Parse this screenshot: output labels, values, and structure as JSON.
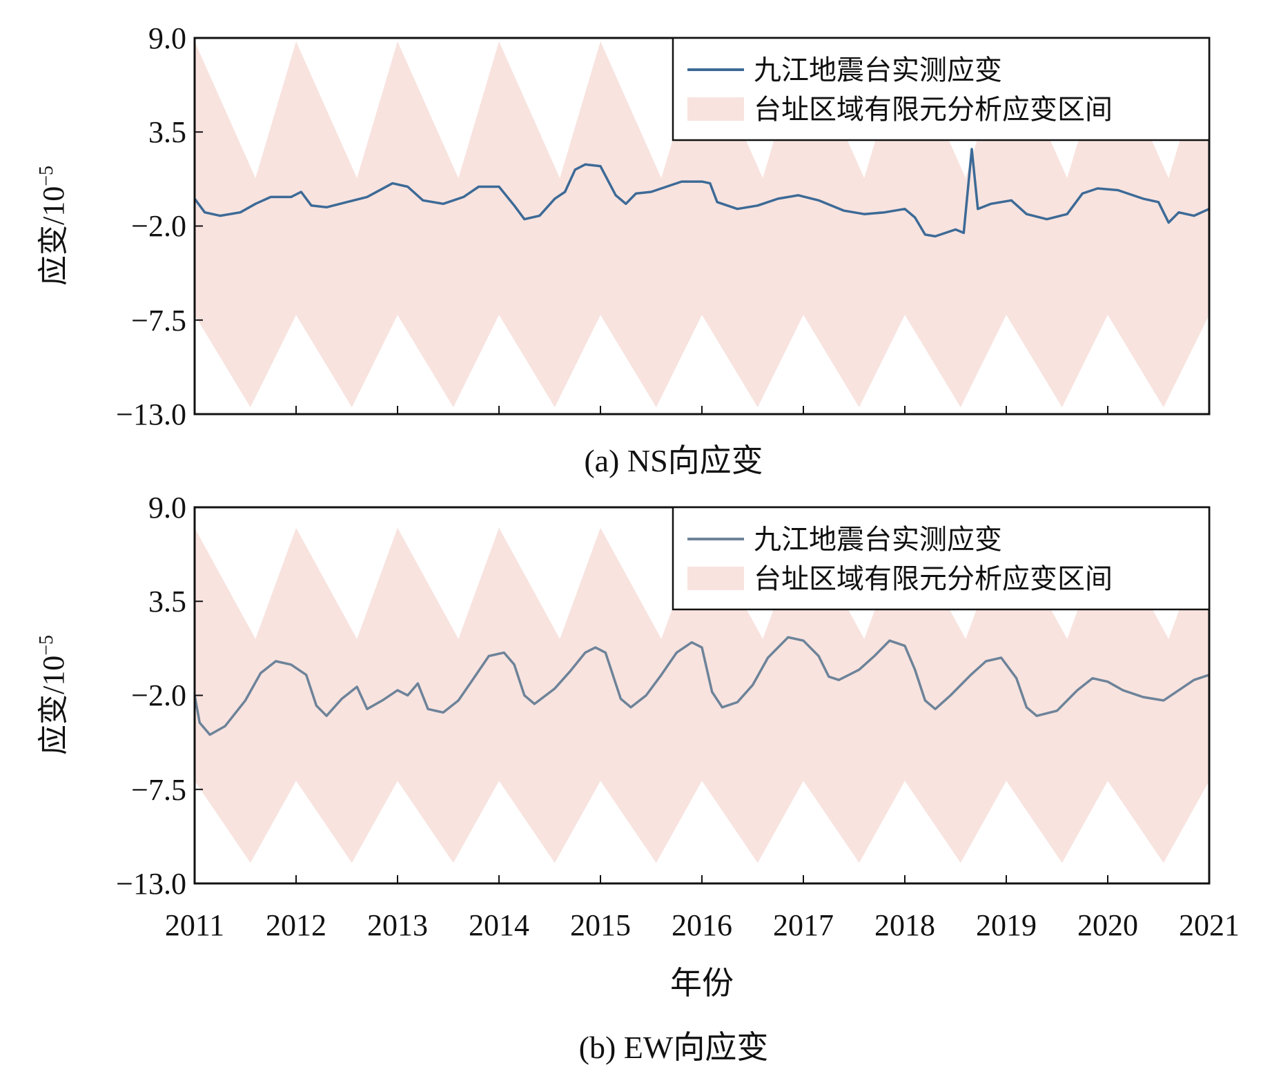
{
  "figure": {
    "x_axis_title": "年份",
    "x_ticks": [
      "2011",
      "2012",
      "2013",
      "2014",
      "2015",
      "2016",
      "2017",
      "2018",
      "2019",
      "2020",
      "2021"
    ]
  },
  "chart_data": [
    {
      "type": "area",
      "caption": "(a) NS向应变",
      "ylabel": "应变/10",
      "ylabel_exponent": "−5",
      "y_ticks": [
        "9.0",
        "3.5",
        "−2.0",
        "−7.5",
        "−13.0"
      ],
      "ylim": [
        -13.0,
        9.0
      ],
      "xlim": [
        2011,
        2021
      ],
      "grid": false,
      "legend_position": "top-right",
      "legend": [
        "九江地震台实测应变",
        "台址区域有限元分析应变区间"
      ],
      "colors": {
        "line": "#3d6a96",
        "band": "#f8e3df"
      },
      "band": {
        "upper_peaks": [
          {
            "x": 2011.0,
            "y": 8.8
          },
          {
            "x": 2012.0,
            "y": 8.8
          },
          {
            "x": 2013.0,
            "y": 8.8
          },
          {
            "x": 2014.0,
            "y": 8.8
          },
          {
            "x": 2015.0,
            "y": 8.8
          },
          {
            "x": 2016.0,
            "y": 8.8
          },
          {
            "x": 2017.0,
            "y": 8.8
          },
          {
            "x": 2018.0,
            "y": 8.8
          },
          {
            "x": 2019.0,
            "y": 8.8
          },
          {
            "x": 2020.0,
            "y": 8.8
          },
          {
            "x": 2021.0,
            "y": 8.8
          }
        ],
        "upper_troughs": [
          {
            "x": 2011.6,
            "y": 0.8
          },
          {
            "x": 2012.6,
            "y": 0.8
          },
          {
            "x": 2013.6,
            "y": 0.8
          },
          {
            "x": 2014.6,
            "y": 0.8
          },
          {
            "x": 2015.6,
            "y": 0.8
          },
          {
            "x": 2016.6,
            "y": 0.8
          },
          {
            "x": 2017.6,
            "y": 0.8
          },
          {
            "x": 2018.6,
            "y": 0.8
          },
          {
            "x": 2019.6,
            "y": 0.8
          },
          {
            "x": 2020.6,
            "y": 0.8
          }
        ],
        "lower_peaks": [
          {
            "x": 2011.0,
            "y": -7.2
          },
          {
            "x": 2012.0,
            "y": -7.2
          },
          {
            "x": 2013.0,
            "y": -7.2
          },
          {
            "x": 2014.0,
            "y": -7.2
          },
          {
            "x": 2015.0,
            "y": -7.2
          },
          {
            "x": 2016.0,
            "y": -7.2
          },
          {
            "x": 2017.0,
            "y": -7.2
          },
          {
            "x": 2018.0,
            "y": -7.2
          },
          {
            "x": 2019.0,
            "y": -7.2
          },
          {
            "x": 2020.0,
            "y": -7.2
          },
          {
            "x": 2021.0,
            "y": -7.2
          }
        ],
        "lower_troughs": [
          {
            "x": 2011.55,
            "y": -12.6
          },
          {
            "x": 2012.55,
            "y": -12.6
          },
          {
            "x": 2013.55,
            "y": -12.6
          },
          {
            "x": 2014.55,
            "y": -12.6
          },
          {
            "x": 2015.55,
            "y": -12.6
          },
          {
            "x": 2016.55,
            "y": -12.6
          },
          {
            "x": 2017.55,
            "y": -12.6
          },
          {
            "x": 2018.55,
            "y": -12.6
          },
          {
            "x": 2019.55,
            "y": -12.6
          },
          {
            "x": 2020.55,
            "y": -12.6
          }
        ]
      },
      "series": [
        {
          "name": "九江地震台实测应变",
          "points": [
            [
              2011.0,
              -0.4
            ],
            [
              2011.1,
              -1.2
            ],
            [
              2011.25,
              -1.4
            ],
            [
              2011.45,
              -1.2
            ],
            [
              2011.6,
              -0.7
            ],
            [
              2011.75,
              -0.3
            ],
            [
              2011.95,
              -0.3
            ],
            [
              2012.05,
              0.0
            ],
            [
              2012.15,
              -0.8
            ],
            [
              2012.3,
              -0.9
            ],
            [
              2012.5,
              -0.6
            ],
            [
              2012.7,
              -0.3
            ],
            [
              2012.95,
              0.5
            ],
            [
              2013.1,
              0.3
            ],
            [
              2013.25,
              -0.5
            ],
            [
              2013.45,
              -0.7
            ],
            [
              2013.65,
              -0.3
            ],
            [
              2013.8,
              0.3
            ],
            [
              2014.0,
              0.3
            ],
            [
              2014.15,
              -0.8
            ],
            [
              2014.25,
              -1.6
            ],
            [
              2014.4,
              -1.4
            ],
            [
              2014.55,
              -0.4
            ],
            [
              2014.65,
              0.0
            ],
            [
              2014.75,
              1.3
            ],
            [
              2014.85,
              1.6
            ],
            [
              2015.0,
              1.5
            ],
            [
              2015.15,
              -0.2
            ],
            [
              2015.25,
              -0.7
            ],
            [
              2015.35,
              -0.1
            ],
            [
              2015.5,
              0.0
            ],
            [
              2015.65,
              0.3
            ],
            [
              2015.8,
              0.6
            ],
            [
              2016.0,
              0.6
            ],
            [
              2016.08,
              0.5
            ],
            [
              2016.15,
              -0.6
            ],
            [
              2016.35,
              -1.0
            ],
            [
              2016.55,
              -0.8
            ],
            [
              2016.75,
              -0.4
            ],
            [
              2016.95,
              -0.2
            ],
            [
              2017.15,
              -0.5
            ],
            [
              2017.4,
              -1.1
            ],
            [
              2017.6,
              -1.3
            ],
            [
              2017.8,
              -1.2
            ],
            [
              2018.0,
              -1.0
            ],
            [
              2018.1,
              -1.5
            ],
            [
              2018.2,
              -2.5
            ],
            [
              2018.3,
              -2.6
            ],
            [
              2018.5,
              -2.2
            ],
            [
              2018.58,
              -2.4
            ],
            [
              2018.66,
              2.5
            ],
            [
              2018.72,
              -1.0
            ],
            [
              2018.85,
              -0.7
            ],
            [
              2019.05,
              -0.5
            ],
            [
              2019.2,
              -1.3
            ],
            [
              2019.4,
              -1.6
            ],
            [
              2019.6,
              -1.3
            ],
            [
              2019.75,
              -0.1
            ],
            [
              2019.9,
              0.2
            ],
            [
              2020.1,
              0.1
            ],
            [
              2020.35,
              -0.4
            ],
            [
              2020.5,
              -0.6
            ],
            [
              2020.6,
              -1.8
            ],
            [
              2020.7,
              -1.2
            ],
            [
              2020.85,
              -1.4
            ],
            [
              2021.0,
              -1.0
            ]
          ]
        }
      ]
    },
    {
      "type": "area",
      "caption": "(b) EW向应变",
      "ylabel": "应变/10",
      "ylabel_exponent": "−5",
      "y_ticks": [
        "9.0",
        "3.5",
        "−2.0",
        "−7.5",
        "−13.0"
      ],
      "ylim": [
        -13.0,
        9.0
      ],
      "xlim": [
        2011,
        2021
      ],
      "grid": false,
      "legend_position": "top-right",
      "legend": [
        "九江地震台实测应变",
        "台址区域有限元分析应变区间"
      ],
      "colors": {
        "line": "#6d8399",
        "band": "#f8e3df"
      },
      "band": {
        "upper_peaks": [
          {
            "x": 2011.0,
            "y": 7.8
          },
          {
            "x": 2012.0,
            "y": 7.8
          },
          {
            "x": 2013.0,
            "y": 7.8
          },
          {
            "x": 2014.0,
            "y": 7.8
          },
          {
            "x": 2015.0,
            "y": 7.8
          },
          {
            "x": 2016.0,
            "y": 7.8
          },
          {
            "x": 2017.0,
            "y": 7.8
          },
          {
            "x": 2018.0,
            "y": 7.8
          },
          {
            "x": 2019.0,
            "y": 7.8
          },
          {
            "x": 2020.0,
            "y": 7.8
          },
          {
            "x": 2021.0,
            "y": 7.8
          }
        ],
        "upper_troughs": [
          {
            "x": 2011.6,
            "y": 1.3
          },
          {
            "x": 2012.6,
            "y": 1.3
          },
          {
            "x": 2013.6,
            "y": 1.3
          },
          {
            "x": 2014.6,
            "y": 1.3
          },
          {
            "x": 2015.6,
            "y": 1.3
          },
          {
            "x": 2016.6,
            "y": 1.3
          },
          {
            "x": 2017.6,
            "y": 1.3
          },
          {
            "x": 2018.6,
            "y": 1.3
          },
          {
            "x": 2019.6,
            "y": 1.3
          },
          {
            "x": 2020.6,
            "y": 1.3
          }
        ],
        "lower_peaks": [
          {
            "x": 2011.0,
            "y": -7.0
          },
          {
            "x": 2012.0,
            "y": -7.0
          },
          {
            "x": 2013.0,
            "y": -7.0
          },
          {
            "x": 2014.0,
            "y": -7.0
          },
          {
            "x": 2015.0,
            "y": -7.0
          },
          {
            "x": 2016.0,
            "y": -7.0
          },
          {
            "x": 2017.0,
            "y": -7.0
          },
          {
            "x": 2018.0,
            "y": -7.0
          },
          {
            "x": 2019.0,
            "y": -7.0
          },
          {
            "x": 2020.0,
            "y": -7.0
          },
          {
            "x": 2021.0,
            "y": -7.0
          }
        ],
        "lower_troughs": [
          {
            "x": 2011.55,
            "y": -11.8
          },
          {
            "x": 2012.55,
            "y": -11.8
          },
          {
            "x": 2013.55,
            "y": -11.8
          },
          {
            "x": 2014.55,
            "y": -11.8
          },
          {
            "x": 2015.55,
            "y": -11.8
          },
          {
            "x": 2016.55,
            "y": -11.8
          },
          {
            "x": 2017.55,
            "y": -11.8
          },
          {
            "x": 2018.55,
            "y": -11.8
          },
          {
            "x": 2019.55,
            "y": -11.8
          },
          {
            "x": 2020.55,
            "y": -11.8
          }
        ]
      },
      "series": [
        {
          "name": "九江地震台实测应变",
          "points": [
            [
              2011.0,
              -2.0
            ],
            [
              2011.05,
              -3.6
            ],
            [
              2011.15,
              -4.3
            ],
            [
              2011.3,
              -3.8
            ],
            [
              2011.5,
              -2.3
            ],
            [
              2011.65,
              -0.7
            ],
            [
              2011.8,
              0.0
            ],
            [
              2011.95,
              -0.2
            ],
            [
              2012.1,
              -0.8
            ],
            [
              2012.2,
              -2.6
            ],
            [
              2012.3,
              -3.2
            ],
            [
              2012.45,
              -2.2
            ],
            [
              2012.6,
              -1.5
            ],
            [
              2012.7,
              -2.8
            ],
            [
              2012.85,
              -2.3
            ],
            [
              2013.0,
              -1.7
            ],
            [
              2013.1,
              -2.0
            ],
            [
              2013.2,
              -1.3
            ],
            [
              2013.3,
              -2.8
            ],
            [
              2013.45,
              -3.0
            ],
            [
              2013.6,
              -2.3
            ],
            [
              2013.75,
              -1.0
            ],
            [
              2013.9,
              0.3
            ],
            [
              2014.05,
              0.5
            ],
            [
              2014.15,
              -0.2
            ],
            [
              2014.25,
              -2.0
            ],
            [
              2014.35,
              -2.5
            ],
            [
              2014.55,
              -1.6
            ],
            [
              2014.7,
              -0.6
            ],
            [
              2014.85,
              0.5
            ],
            [
              2014.95,
              0.8
            ],
            [
              2015.05,
              0.5
            ],
            [
              2015.2,
              -2.2
            ],
            [
              2015.3,
              -2.7
            ],
            [
              2015.45,
              -2.0
            ],
            [
              2015.6,
              -0.8
            ],
            [
              2015.75,
              0.5
            ],
            [
              2015.9,
              1.1
            ],
            [
              2016.0,
              0.8
            ],
            [
              2016.1,
              -1.8
            ],
            [
              2016.2,
              -2.7
            ],
            [
              2016.35,
              -2.4
            ],
            [
              2016.5,
              -1.4
            ],
            [
              2016.65,
              0.2
            ],
            [
              2016.85,
              1.4
            ],
            [
              2017.0,
              1.2
            ],
            [
              2017.15,
              0.3
            ],
            [
              2017.25,
              -0.9
            ],
            [
              2017.35,
              -1.1
            ],
            [
              2017.55,
              -0.5
            ],
            [
              2017.7,
              0.3
            ],
            [
              2017.85,
              1.2
            ],
            [
              2018.0,
              0.9
            ],
            [
              2018.1,
              -0.5
            ],
            [
              2018.2,
              -2.3
            ],
            [
              2018.3,
              -2.8
            ],
            [
              2018.45,
              -2.0
            ],
            [
              2018.65,
              -0.8
            ],
            [
              2018.8,
              0.0
            ],
            [
              2018.95,
              0.2
            ],
            [
              2019.1,
              -1.0
            ],
            [
              2019.2,
              -2.7
            ],
            [
              2019.3,
              -3.2
            ],
            [
              2019.5,
              -2.9
            ],
            [
              2019.7,
              -1.7
            ],
            [
              2019.85,
              -1.0
            ],
            [
              2020.0,
              -1.2
            ],
            [
              2020.15,
              -1.7
            ],
            [
              2020.35,
              -2.1
            ],
            [
              2020.55,
              -2.3
            ],
            [
              2020.7,
              -1.7
            ],
            [
              2020.85,
              -1.1
            ],
            [
              2021.0,
              -0.8
            ]
          ]
        }
      ]
    }
  ]
}
